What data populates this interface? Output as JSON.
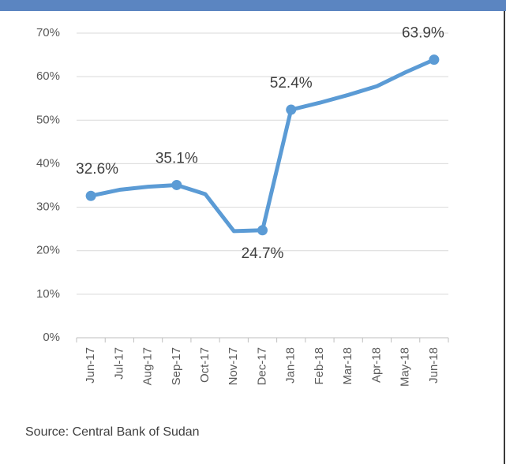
{
  "chart_data": {
    "type": "line",
    "categories": [
      "Jun-17",
      "Jul-17",
      "Aug-17",
      "Sep-17",
      "Oct-17",
      "Nov-17",
      "Dec-17",
      "Jan-18",
      "Feb-18",
      "Mar-18",
      "Apr-18",
      "May-18",
      "Jun-18"
    ],
    "series": [
      {
        "color": "#5b9bd5",
        "values": [
          32.6,
          34.0,
          34.7,
          35.1,
          33.0,
          24.5,
          24.7,
          52.4,
          54.0,
          55.8,
          57.8,
          61.0,
          63.9
        ],
        "value_labels": [
          "32.6%",
          null,
          null,
          "35.1%",
          null,
          null,
          "24.7%",
          "52.4%",
          null,
          null,
          null,
          null,
          "63.9%"
        ]
      }
    ],
    "ylim": [
      0,
      70
    ],
    "yticks": [
      {
        "value": 0,
        "label": "0%"
      },
      {
        "value": 10,
        "label": "10%"
      },
      {
        "value": 20,
        "label": "20%"
      },
      {
        "value": 30,
        "label": "30%"
      },
      {
        "value": 40,
        "label": "40%"
      },
      {
        "value": 50,
        "label": "50%"
      },
      {
        "value": 60,
        "label": "60%"
      },
      {
        "value": 70,
        "label": "70%"
      }
    ],
    "grid": true,
    "source": "Source: Central Bank of Sudan"
  }
}
